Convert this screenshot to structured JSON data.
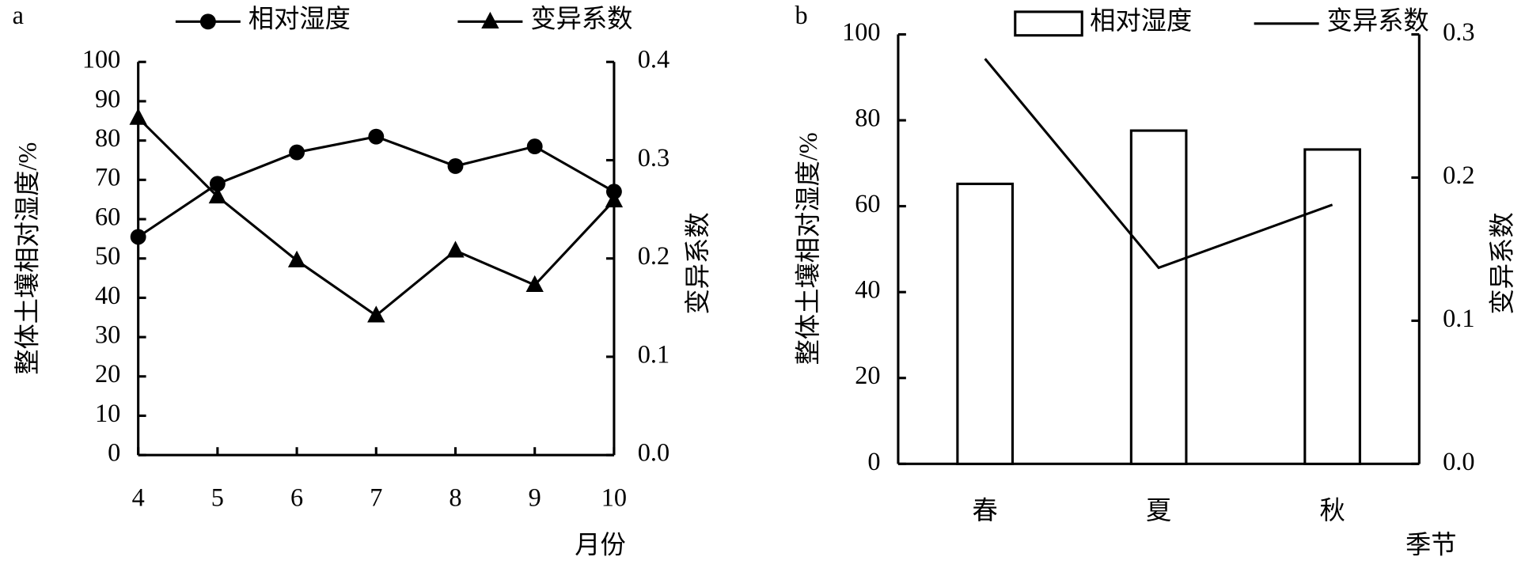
{
  "chart_data": [
    {
      "type": "line",
      "panel": "a",
      "xlabel": "月份",
      "ylabel": "整体土壤相对湿度/%",
      "y2label": "变异系数",
      "x": [
        4,
        5,
        6,
        7,
        8,
        9,
        10
      ],
      "xlim": [
        4,
        10
      ],
      "xticks": [
        4,
        5,
        6,
        7,
        8,
        9,
        10
      ],
      "ylim": [
        0,
        100
      ],
      "yticks": [
        0,
        10,
        20,
        30,
        40,
        50,
        60,
        70,
        80,
        90,
        100
      ],
      "y2lim": [
        0,
        0.4
      ],
      "y2ticks": [
        {
          "value": 0,
          "label": "0.0"
        },
        0.1,
        0.2,
        0.3,
        0.4
      ],
      "series": [
        {
          "name": "相对湿度",
          "color": "#000000",
          "marker": "circle",
          "values": [
            55.5,
            69,
            77,
            81,
            73.5,
            78.5,
            67
          ]
        },
        {
          "name": "变异系数",
          "color": "#000000",
          "marker": "triangle",
          "axis": "y2",
          "values": [
            0.343,
            0.263,
            0.198,
            0.142,
            0.208,
            0.173,
            0.259
          ]
        }
      ]
    },
    {
      "type": "bar",
      "panel": "b",
      "xlabel": "季节",
      "ylabel": "整体土壤相对湿度/%",
      "y2label": "变异系数",
      "categories": [
        "春",
        "夏",
        "秋"
      ],
      "ylim": [
        0,
        100
      ],
      "yticks": [
        0,
        20,
        40,
        60,
        80,
        100
      ],
      "y2lim": [
        0,
        0.3
      ],
      "y2ticks": [
        {
          "value": 0,
          "label": "0.0"
        },
        0.1,
        0.2,
        0.3
      ],
      "series": [
        {
          "name": "相对湿度",
          "color": "#000000",
          "values": [
            65.2,
            77.6,
            73.2
          ]
        },
        {
          "name": "变异系数",
          "color": "#000000",
          "type": "line",
          "axis": "y2",
          "values": [
            0.283,
            0.137,
            0.181
          ]
        }
      ]
    }
  ]
}
